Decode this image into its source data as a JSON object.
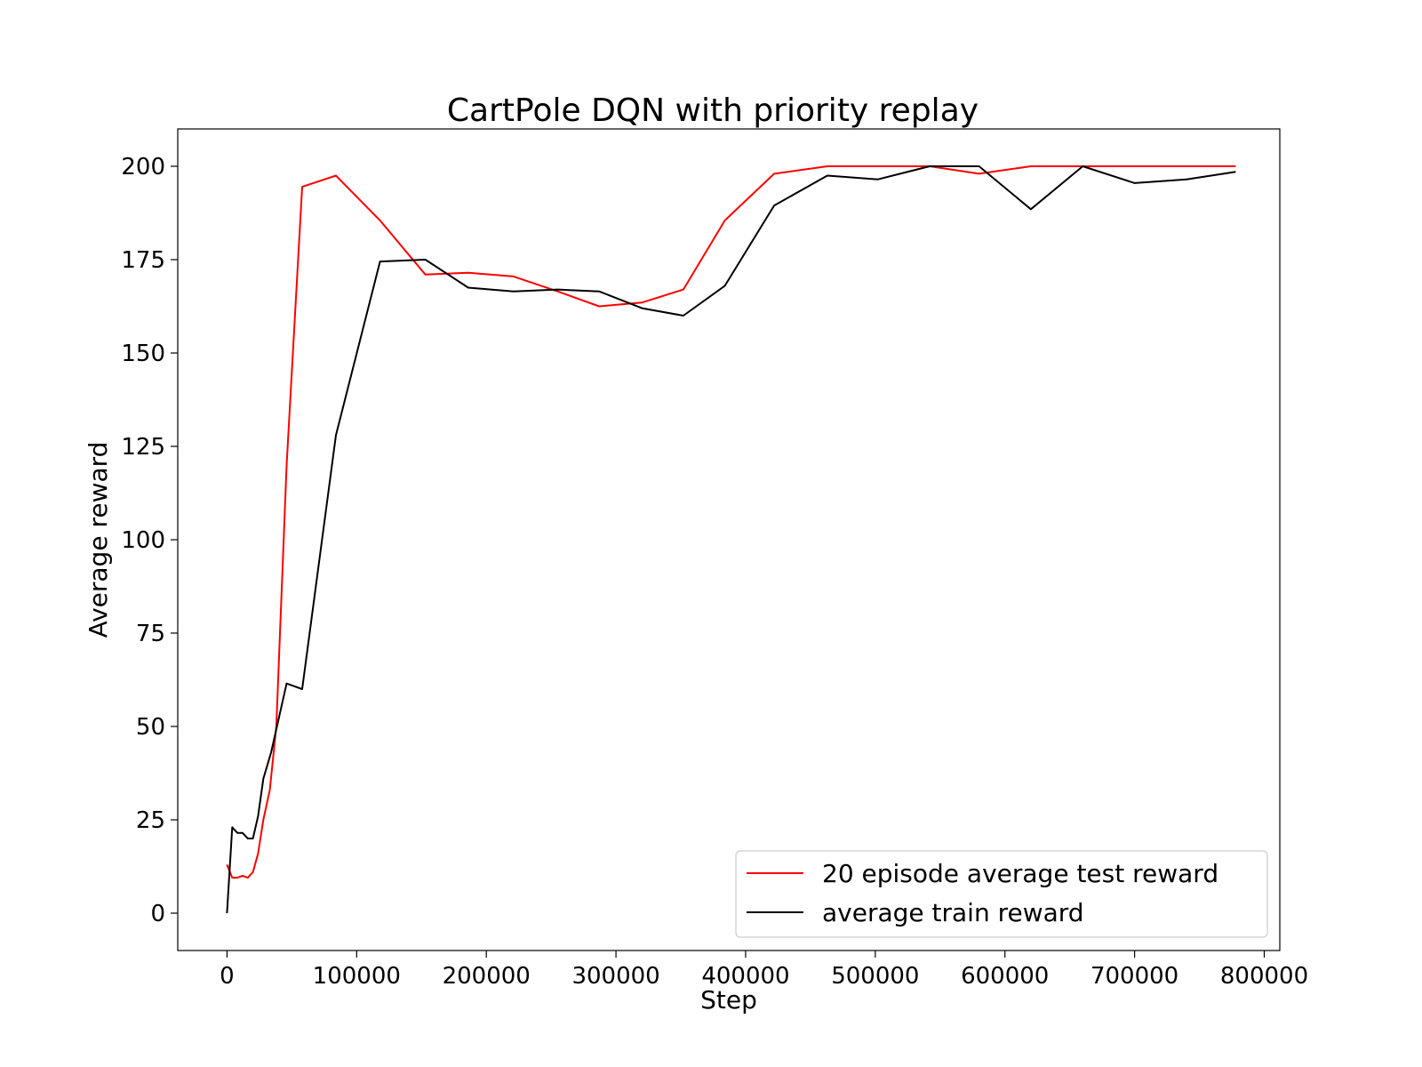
{
  "chart_data": {
    "type": "line",
    "title": "CartPole DQN with priority replay",
    "xlabel": "Step",
    "ylabel": "Average reward",
    "xlim": [
      -38000,
      812000
    ],
    "ylim": [
      -10,
      210
    ],
    "xticks": [
      0,
      100000,
      200000,
      300000,
      400000,
      500000,
      600000,
      700000,
      800000
    ],
    "xtick_labels": [
      "0",
      "100000",
      "200000",
      "300000",
      "400000",
      "500000",
      "600000",
      "700000",
      "800000"
    ],
    "yticks": [
      0,
      25,
      50,
      75,
      100,
      125,
      150,
      175,
      200
    ],
    "ytick_labels": [
      "0",
      "25",
      "50",
      "75",
      "100",
      "125",
      "150",
      "175",
      "200"
    ],
    "grid": false,
    "legend_position": "lower-right",
    "series": [
      {
        "name": "20 episode average test reward",
        "color": "#ff0000",
        "x": [
          0,
          4000,
          8000,
          12000,
          16000,
          20000,
          24000,
          28000,
          33000,
          38000,
          46000,
          58000,
          84000,
          118000,
          153000,
          186000,
          221000,
          255000,
          287000,
          320000,
          352000,
          384000,
          422000,
          463000,
          502000,
          542000,
          580000,
          620000,
          660000,
          700000,
          740000,
          778000
        ],
        "y": [
          13,
          9.5,
          9.5,
          10,
          9.5,
          11,
          16,
          25,
          33,
          50,
          120,
          194.5,
          197.5,
          185.5,
          171,
          171.5,
          170.5,
          166.5,
          162.5,
          163.5,
          167,
          185.5,
          198,
          200,
          200,
          200,
          198,
          200,
          200,
          200,
          200,
          200
        ]
      },
      {
        "name": "average train reward",
        "color": "#000000",
        "x": [
          0,
          4000,
          8000,
          12000,
          16000,
          20000,
          24000,
          28000,
          34000,
          46000,
          58000,
          84000,
          118000,
          153000,
          186000,
          221000,
          255000,
          287000,
          320000,
          352000,
          384000,
          422000,
          463000,
          502000,
          542000,
          580000,
          620000,
          660000,
          700000,
          740000,
          778000
        ],
        "y": [
          0,
          23,
          21.5,
          21.5,
          20,
          20,
          26,
          36,
          43,
          61.5,
          60,
          128,
          174.5,
          175,
          167.5,
          166.5,
          167,
          166.5,
          162,
          160,
          168,
          189.5,
          197.5,
          196.5,
          200,
          200,
          188.5,
          200,
          195.5,
          196.5,
          198.5
        ]
      }
    ]
  }
}
